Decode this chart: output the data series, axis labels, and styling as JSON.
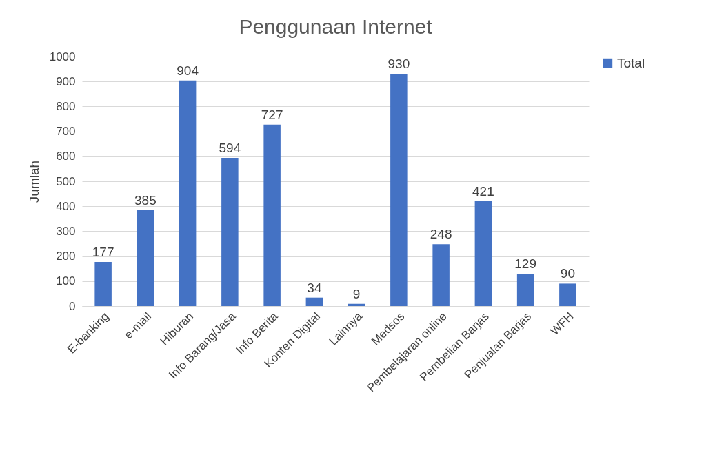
{
  "chart_data": {
    "type": "bar",
    "title": "Penggunaan Internet",
    "ylabel": "Jumlah",
    "categories": [
      "E-banking",
      "e-mail",
      "Hiburan",
      "Info Barang/Jasa",
      "Info Berita",
      "Konten Digital",
      "Lainnya",
      "Medsos",
      "Pembelajaran online",
      "Pembelian Barjas",
      "Penjualan Barjas",
      "WFH"
    ],
    "series": [
      {
        "name": "Total",
        "color": "#4472c4",
        "values": [
          177,
          385,
          904,
          594,
          727,
          34,
          9,
          930,
          248,
          421,
          129,
          90
        ]
      }
    ],
    "ylim": [
      0,
      1000
    ],
    "yticks": [
      0,
      100,
      200,
      300,
      400,
      500,
      600,
      700,
      800,
      900,
      1000
    ],
    "grid": "y",
    "legend": "right",
    "data_labels": true
  }
}
